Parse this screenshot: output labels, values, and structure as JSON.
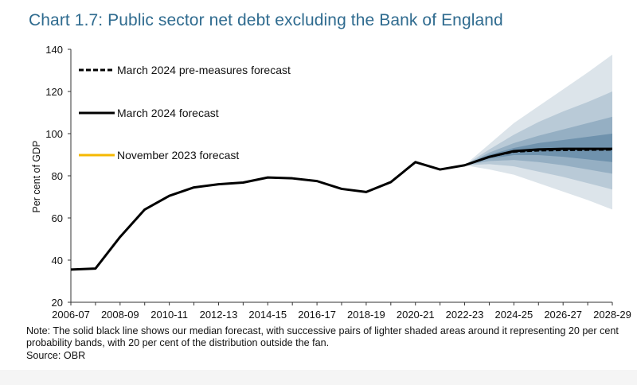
{
  "title": "Chart 1.7: Public sector net debt excluding the Bank of England",
  "note": "Note: The solid black line shows our median forecast, with successive pairs of lighter shaded areas around it representing 20 per cent probability bands, with 20 per cent of the distribution outside the fan.",
  "source": "Source: OBR",
  "colors": {
    "title": "#2f6b8f",
    "premeasures": "#000000",
    "march": "#000000",
    "november": "#f5b800",
    "fan": [
      "#dce4ea",
      "#b9cad7",
      "#95afc3",
      "#6f92ad"
    ]
  },
  "chart_data": {
    "type": "line",
    "title": "Chart 1.7: Public sector net debt excluding the Bank of England",
    "xlabel": "",
    "ylabel": "Per cent of GDP",
    "ylim": [
      20,
      140
    ],
    "yticks": [
      20,
      40,
      60,
      80,
      100,
      120,
      140
    ],
    "x_tick_labels": [
      "2006-07",
      "2008-09",
      "2010-11",
      "2012-13",
      "2014-15",
      "2016-17",
      "2018-19",
      "2020-21",
      "2022-23",
      "2024-25",
      "2026-27",
      "2028-29"
    ],
    "legend": [
      {
        "label": "March 2024 pre-measures forecast",
        "style": "dashed"
      },
      {
        "label": "March 2024 forecast",
        "style": "solid"
      },
      {
        "label": "November 2023 forecast",
        "style": "solid-yellow"
      }
    ],
    "legend_position": "top-left",
    "series": [
      {
        "name": "March 2024 forecast",
        "x": [
          "2006-07",
          "2007-08",
          "2008-09",
          "2009-10",
          "2010-11",
          "2011-12",
          "2012-13",
          "2013-14",
          "2014-15",
          "2015-16",
          "2016-17",
          "2017-18",
          "2018-19",
          "2019-20",
          "2020-21",
          "2021-22",
          "2022-23",
          "2023-24",
          "2024-25",
          "2025-26",
          "2026-27",
          "2027-28",
          "2028-29"
        ],
        "values": [
          35.5,
          36,
          51,
          64,
          70.5,
          74.5,
          76,
          76.8,
          79.2,
          78.8,
          77.5,
          73.8,
          72.3,
          77,
          86.5,
          83,
          85,
          89,
          91.7,
          92.5,
          92.8,
          92.8,
          92.8
        ]
      },
      {
        "name": "March 2024 pre-measures forecast",
        "x": [
          "2022-23",
          "2023-24",
          "2024-25",
          "2025-26",
          "2026-27",
          "2027-28",
          "2028-29"
        ],
        "values": [
          85,
          89,
          91.4,
          92,
          92.2,
          92.3,
          92.4
        ]
      }
    ],
    "fan_bands": {
      "x": [
        "2022-23",
        "2023-24",
        "2024-25",
        "2025-26",
        "2026-27",
        "2027-28",
        "2028-29"
      ],
      "bands": [
        {
          "lower": [
            85,
            83,
            80.5,
            76.5,
            72.5,
            68.5,
            64
          ],
          "upper": [
            85,
            95,
            105,
            113,
            121,
            129,
            137.5
          ]
        },
        {
          "lower": [
            85,
            85.5,
            84.5,
            82,
            79.5,
            76.5,
            73.5
          ],
          "upper": [
            85,
            92.5,
            99.5,
            105.5,
            110.5,
            115,
            120
          ]
        },
        {
          "lower": [
            85,
            87,
            87.5,
            86.5,
            85,
            83,
            81
          ],
          "upper": [
            85,
            91,
            95.5,
            99,
            102,
            105,
            108
          ]
        },
        {
          "lower": [
            85,
            88.2,
            89.8,
            89.8,
            89,
            87.8,
            86.5
          ],
          "upper": [
            85,
            90,
            93.2,
            95.5,
            97,
            98.5,
            100
          ]
        }
      ]
    },
    "grid": false
  }
}
